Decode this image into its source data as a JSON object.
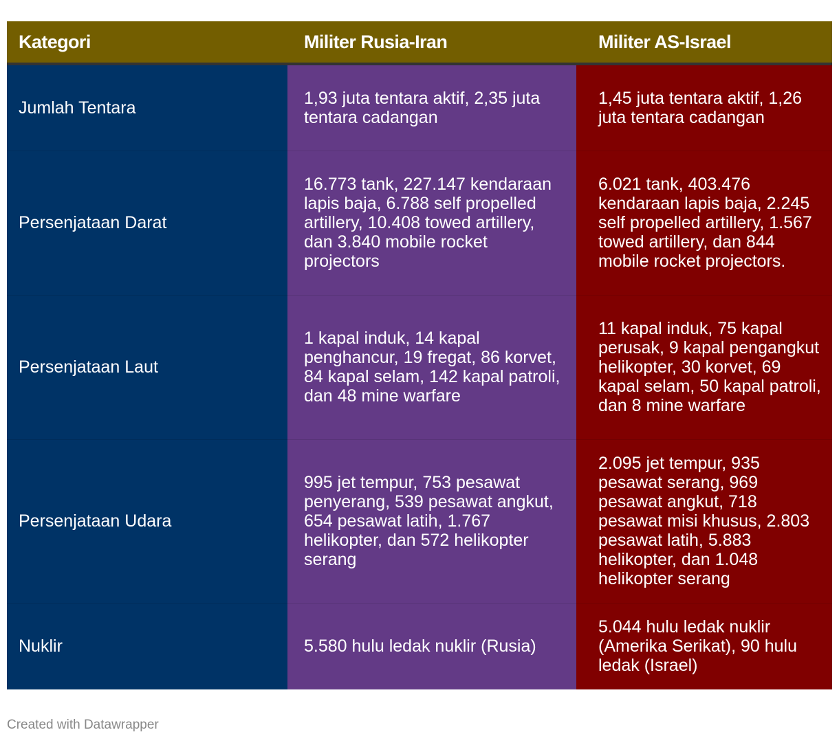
{
  "chart_data": {
    "type": "table",
    "columns": [
      "Kategori",
      "Militer Rusia-Iran",
      "Militer AS-Israel"
    ],
    "rows": [
      {
        "category": "Jumlah Tentara",
        "rusia_iran": "1,93 juta tentara aktif, 2,35 juta tentara cadangan",
        "as_israel": "1,45 juta tentara aktif, 1,26 juta tentara cadangan"
      },
      {
        "category": "Persenjataan Darat",
        "rusia_iran": "16.773 tank, 227.147 kendaraan lapis baja, 6.788 self propelled artillery, 10.408 towed artillery, dan 3.840 mobile rocket projectors",
        "as_israel": "6.021 tank, 403.476 kendaraan lapis baja, 2.245 self propelled artillery, 1.567 towed artillery, dan 844 mobile rocket projectors."
      },
      {
        "category": "Persenjataan Laut",
        "rusia_iran": "1 kapal induk, 14 kapal penghancur, 19 fregat, 86 korvet, 84 kapal selam, 142 kapal patroli, dan 48 mine warfare",
        "as_israel": "11 kapal induk, 75 kapal perusak, 9 kapal pengangkut helikopter, 30 korvet, 69 kapal selam, 50 kapal patroli, dan 8 mine warfare"
      },
      {
        "category": "Persenjataan Udara",
        "rusia_iran": "995 jet tempur, 753 pesawat penyerang, 539 pesawat angkut, 654 pesawat latih, 1.767 helikopter, dan 572 helikopter serang",
        "as_israel": "2.095 jet tempur, 935 pesawat serang, 969 pesawat angkut, 718 pesawat misi khusus, 2.803 pesawat latih, 5.883 helikopter, dan 1.048 helikopter serang"
      },
      {
        "category": "Nuklir",
        "rusia_iran": "5.580 hulu ledak nuklir (Rusia)",
        "as_israel": "5.044 hulu ledak nuklir (Amerika Serikat), 90 hulu ledak (Israel)"
      }
    ],
    "colors": {
      "header": "#735e00",
      "kategori": "#003366",
      "rusia_iran": "#633a86",
      "as_israel": "#800000"
    }
  },
  "footer": {
    "credit": "Created with Datawrapper"
  }
}
